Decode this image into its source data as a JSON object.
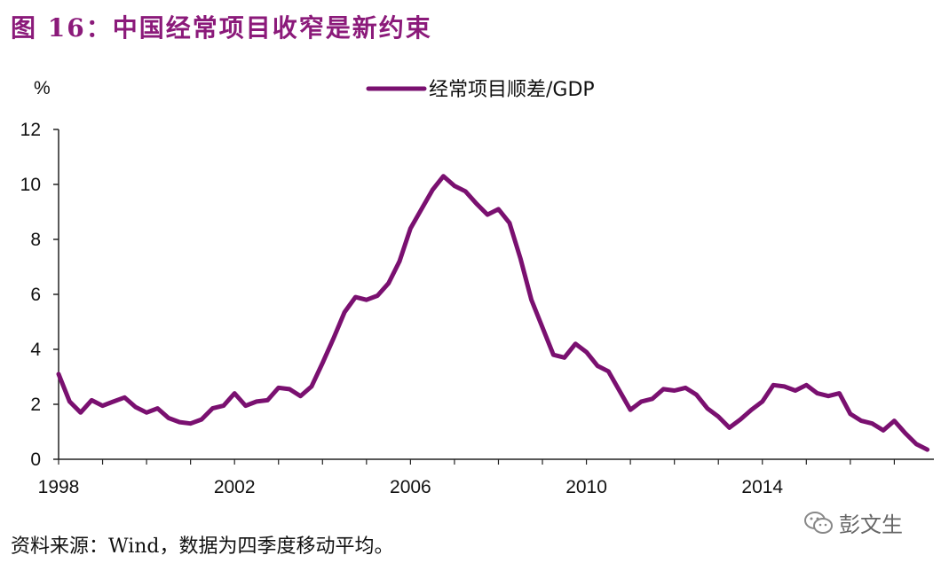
{
  "header": {
    "title": "图 16：中国经常项目收窄是新约束"
  },
  "footer": {
    "source": "资料来源：Wind，数据为四季度移动平均。",
    "watermark": "彭文生",
    "watermark_icon": "wechat-icon"
  },
  "chart_data": {
    "type": "line",
    "title": "图 16：中国经常项目收窄是新约束",
    "ylabel": "%",
    "xlabel": "",
    "ylim": [
      0,
      12
    ],
    "xlim": [
      1998,
      2017.9
    ],
    "yticks": [
      0,
      2,
      4,
      6,
      8,
      10,
      12
    ],
    "ytick_labels": [
      "0",
      "2",
      "4",
      "6",
      "8",
      "10",
      "12"
    ],
    "xticks": [
      1998,
      2002,
      2006,
      2010,
      2014
    ],
    "xtick_labels": [
      "1998",
      "2002",
      "2006",
      "2010",
      "2014"
    ],
    "legend_position": "top-center",
    "series": [
      {
        "name": "经常项目顺差/GDP",
        "color": "#7a1070",
        "x": [
          1998.0,
          1998.25,
          1998.5,
          1998.75,
          1999.0,
          1999.25,
          1999.5,
          1999.75,
          2000.0,
          2000.25,
          2000.5,
          2000.75,
          2001.0,
          2001.25,
          2001.5,
          2001.75,
          2002.0,
          2002.25,
          2002.5,
          2002.75,
          2003.0,
          2003.25,
          2003.5,
          2003.75,
          2004.0,
          2004.25,
          2004.5,
          2004.75,
          2005.0,
          2005.25,
          2005.5,
          2005.75,
          2006.0,
          2006.25,
          2006.5,
          2006.75,
          2007.0,
          2007.25,
          2007.5,
          2007.75,
          2008.0,
          2008.25,
          2008.5,
          2008.75,
          2009.0,
          2009.25,
          2009.5,
          2009.75,
          2010.0,
          2010.25,
          2010.5,
          2010.75,
          2011.0,
          2011.25,
          2011.5,
          2011.75,
          2012.0,
          2012.25,
          2012.5,
          2012.75,
          2013.0,
          2013.25,
          2013.5,
          2013.75,
          2014.0,
          2014.25,
          2014.5,
          2014.75,
          2015.0,
          2015.25,
          2015.5,
          2015.75,
          2016.0,
          2016.25,
          2016.5,
          2016.75,
          2017.0,
          2017.25,
          2017.5,
          2017.75
        ],
        "values": [
          3.1,
          2.1,
          1.7,
          2.15,
          1.95,
          2.1,
          2.25,
          1.9,
          1.7,
          1.85,
          1.5,
          1.35,
          1.3,
          1.45,
          1.85,
          1.95,
          2.4,
          1.95,
          2.1,
          2.15,
          2.6,
          2.55,
          2.3,
          2.65,
          3.5,
          4.4,
          5.35,
          5.9,
          5.8,
          5.95,
          6.4,
          7.2,
          8.4,
          9.1,
          9.8,
          10.3,
          9.95,
          9.75,
          9.3,
          8.9,
          9.1,
          8.6,
          7.3,
          5.8,
          4.8,
          3.8,
          3.7,
          4.2,
          3.9,
          3.4,
          3.2,
          2.5,
          1.8,
          2.1,
          2.2,
          2.55,
          2.5,
          2.6,
          2.35,
          1.85,
          1.55,
          1.15,
          1.45,
          1.8,
          2.1,
          2.7,
          2.65,
          2.5,
          2.7,
          2.4,
          2.3,
          2.4,
          1.65,
          1.4,
          1.3,
          1.05,
          1.4,
          0.95,
          0.55,
          0.35
        ]
      }
    ]
  }
}
